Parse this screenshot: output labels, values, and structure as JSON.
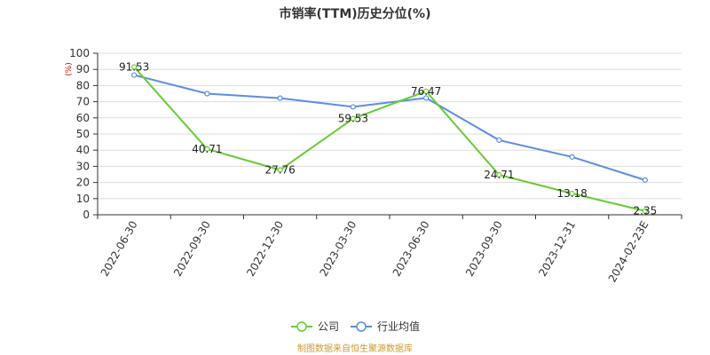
{
  "chart_data": {
    "type": "line",
    "title": "市销率(TTM)历史分位(%)",
    "ylabel": "(%)",
    "ylim": [
      0,
      100
    ],
    "yticks": [
      0,
      10,
      20,
      30,
      40,
      50,
      60,
      70,
      80,
      90,
      100
    ],
    "grid": true,
    "legend_position": "bottom",
    "categories": [
      "2022-06-30",
      "2022-09-30",
      "2022-12-30",
      "2023-03-30",
      "2023-06-30",
      "2023-09-30",
      "2023-12-31",
      "2024-02-23E"
    ],
    "series": [
      {
        "name": "公司",
        "color": "#66cc33",
        "values": [
          91.53,
          40.71,
          27.76,
          59.53,
          76.47,
          24.71,
          13.18,
          2.35
        ],
        "labels": [
          "91.53",
          "40.71",
          "27.76",
          "59.53",
          "76.47",
          "24.71",
          "13.18",
          "2.35"
        ]
      },
      {
        "name": "行业均值",
        "color": "#5b8ee0",
        "values": [
          86.5,
          75,
          72.2,
          66.8,
          72.3,
          46.2,
          35.8,
          21.5
        ]
      }
    ]
  },
  "footer": "制图数据来自恒生聚源数据库",
  "footer_color": "#cc9933",
  "unit_color": "#cc0000"
}
